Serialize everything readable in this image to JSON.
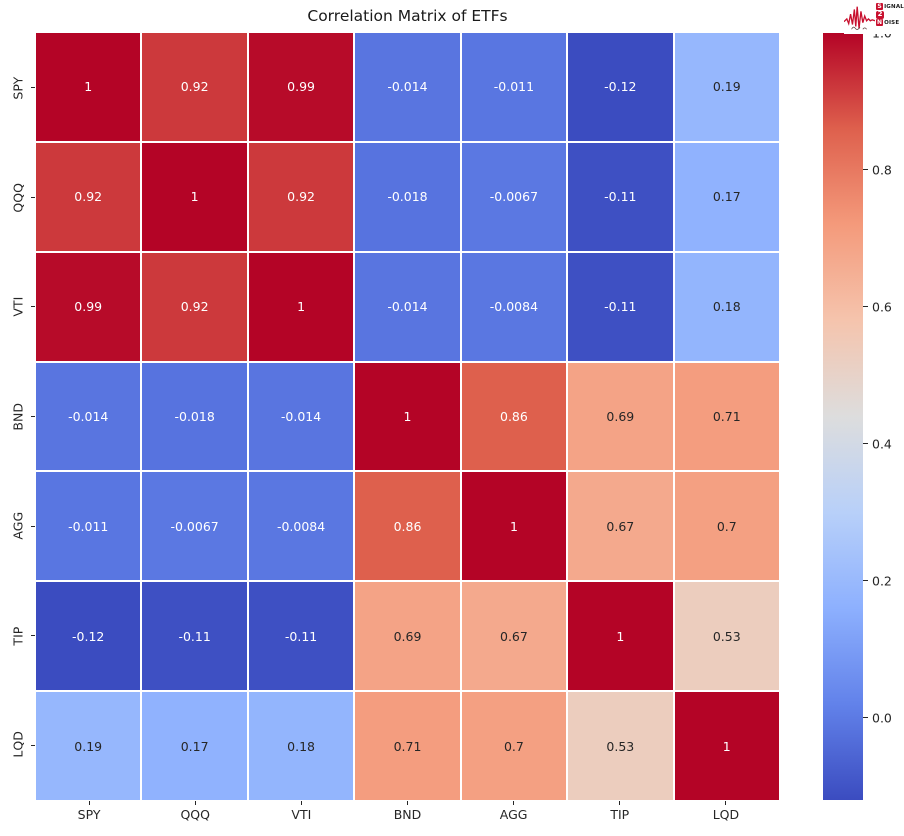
{
  "title": "Correlation Matrix of ETFs",
  "logo": {
    "letter1": "S",
    "rest1": "IGNAL",
    "number": "2",
    "letter2": "N",
    "rest2": "OISE",
    "accent_color": "#c8102e"
  },
  "chart_data": {
    "type": "heatmap",
    "title": "Correlation Matrix of ETFs",
    "x_labels": [
      "SPY",
      "QQQ",
      "VTI",
      "BND",
      "AGG",
      "TIP",
      "LQD"
    ],
    "y_labels": [
      "SPY",
      "QQQ",
      "VTI",
      "BND",
      "AGG",
      "TIP",
      "LQD"
    ],
    "matrix": [
      [
        1,
        0.92,
        0.99,
        -0.014,
        -0.011,
        -0.12,
        0.19
      ],
      [
        0.92,
        1,
        0.92,
        -0.018,
        -0.0067,
        -0.11,
        0.17
      ],
      [
        0.99,
        0.92,
        1,
        -0.014,
        -0.0084,
        -0.11,
        0.18
      ],
      [
        -0.014,
        -0.018,
        -0.014,
        1,
        0.86,
        0.69,
        0.71
      ],
      [
        -0.011,
        -0.0067,
        -0.0084,
        0.86,
        1,
        0.67,
        0.7
      ],
      [
        -0.12,
        -0.11,
        -0.11,
        0.69,
        0.67,
        1,
        0.53
      ],
      [
        0.19,
        0.17,
        0.18,
        0.71,
        0.7,
        0.53,
        1
      ]
    ],
    "annotations": [
      [
        "1",
        "0.92",
        "0.99",
        "-0.014",
        "-0.011",
        "-0.12",
        "0.19"
      ],
      [
        "0.92",
        "1",
        "0.92",
        "-0.018",
        "-0.0067",
        "-0.11",
        "0.17"
      ],
      [
        "0.99",
        "0.92",
        "1",
        "-0.014",
        "-0.0084",
        "-0.11",
        "0.18"
      ],
      [
        "-0.014",
        "-0.018",
        "-0.014",
        "1",
        "0.86",
        "0.69",
        "0.71"
      ],
      [
        "-0.011",
        "-0.0067",
        "-0.0084",
        "0.86",
        "1",
        "0.67",
        "0.7"
      ],
      [
        "-0.12",
        "-0.11",
        "-0.11",
        "0.69",
        "0.67",
        "1",
        "0.53"
      ],
      [
        "0.19",
        "0.17",
        "0.18",
        "0.71",
        "0.7",
        "0.53",
        "1"
      ]
    ],
    "colormap": "coolwarm",
    "colormap_stops": [
      {
        "t": 0.0,
        "color": "#3b4cc0"
      },
      {
        "t": 0.125,
        "color": "#6282ea"
      },
      {
        "t": 0.25,
        "color": "#8db0fe"
      },
      {
        "t": 0.375,
        "color": "#b8d0f9"
      },
      {
        "t": 0.5,
        "color": "#dddddd"
      },
      {
        "t": 0.625,
        "color": "#f5c4ad"
      },
      {
        "t": 0.75,
        "color": "#f49a7b"
      },
      {
        "t": 0.875,
        "color": "#de604d"
      },
      {
        "t": 1.0,
        "color": "#b40426"
      }
    ],
    "vmin": -0.12,
    "vmax": 1.0,
    "gridline_color": "#ffffff",
    "annotation_dark_color": "#262626",
    "annotation_light_color": "#ffffff",
    "colorbar_ticks": [
      {
        "value": 1.0,
        "label": "1.0"
      },
      {
        "value": 0.8,
        "label": "0.8"
      },
      {
        "value": 0.6,
        "label": "0.6"
      },
      {
        "value": 0.4,
        "label": "0.4"
      },
      {
        "value": 0.2,
        "label": "0.2"
      },
      {
        "value": 0.0,
        "label": "0.0"
      }
    ],
    "legend_position": "right",
    "y_tick_rotation": 90,
    "x_tick_rotation": 0
  }
}
